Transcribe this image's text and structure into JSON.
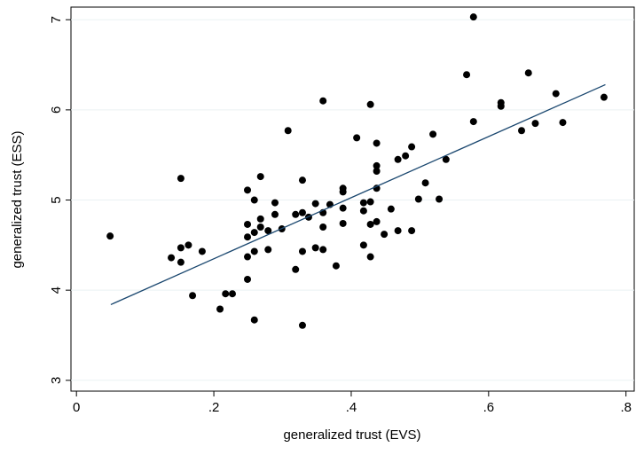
{
  "chart_data": {
    "type": "scatter",
    "x_label": "generalized trust (EVS)",
    "y_label": "generalized trust (ESS)",
    "xlim": [
      -0.008,
      0.812
    ],
    "ylim": [
      2.88,
      7.14
    ],
    "xticks": [
      0,
      {
        "value": 0.2,
        "label": ".2"
      },
      {
        "value": 0.4,
        "label": ".4"
      },
      {
        "value": 0.6,
        "label": ".6"
      },
      {
        "value": 0.8,
        "label": ".8"
      }
    ],
    "yticks": [
      3,
      4,
      5,
      6,
      7
    ],
    "grid": true,
    "series": [
      {
        "color": "#000000",
        "x": [
          0.049,
          0.138,
          0.169,
          0.152,
          0.152,
          0.163,
          0.152,
          0.183,
          0.209,
          0.217,
          0.227,
          0.249,
          0.249,
          0.249,
          0.249,
          0.249,
          0.259,
          0.259,
          0.259,
          0.259,
          0.268,
          0.268,
          0.268,
          0.279,
          0.279,
          0.289,
          0.289,
          0.299,
          0.308,
          0.319,
          0.319,
          0.329,
          0.329,
          0.329,
          0.329,
          0.338,
          0.348,
          0.348,
          0.359,
          0.359,
          0.359,
          0.359,
          0.369,
          0.378,
          0.388,
          0.388,
          0.388,
          0.388,
          0.408,
          0.418,
          0.418,
          0.418,
          0.428,
          0.428,
          0.428,
          0.428,
          0.437,
          0.437,
          0.437,
          0.437,
          0.437,
          0.448,
          0.458,
          0.468,
          0.468,
          0.479,
          0.488,
          0.488,
          0.498,
          0.508,
          0.519,
          0.528,
          0.538,
          0.568,
          0.578,
          0.578,
          0.618,
          0.618,
          0.648,
          0.658,
          0.668,
          0.698,
          0.708,
          0.768
        ],
        "values": [
          4.6,
          4.36,
          3.94,
          5.24,
          4.47,
          4.5,
          4.31,
          4.43,
          3.79,
          3.96,
          3.96,
          5.11,
          4.73,
          4.59,
          4.37,
          4.12,
          5.0,
          4.64,
          4.43,
          3.67,
          5.26,
          4.79,
          4.7,
          4.66,
          4.45,
          4.97,
          4.84,
          4.68,
          5.77,
          4.84,
          4.23,
          5.22,
          4.86,
          4.43,
          3.61,
          4.81,
          4.96,
          4.47,
          6.1,
          4.86,
          4.7,
          4.45,
          4.95,
          4.27,
          5.13,
          5.09,
          4.91,
          4.74,
          5.69,
          4.97,
          4.88,
          4.5,
          6.06,
          4.98,
          4.73,
          4.37,
          5.63,
          5.38,
          5.32,
          5.13,
          4.76,
          4.62,
          4.9,
          5.45,
          4.66,
          5.49,
          5.59,
          4.66,
          5.01,
          5.19,
          5.73,
          5.01,
          5.45,
          6.39,
          7.03,
          5.87,
          6.08,
          6.04,
          5.77,
          6.41,
          5.85,
          6.18,
          5.86,
          6.14
        ]
      }
    ],
    "fit": {
      "color": "#1a476f",
      "x": [
        0.05,
        0.77
      ],
      "y": [
        3.84,
        6.28
      ]
    }
  }
}
